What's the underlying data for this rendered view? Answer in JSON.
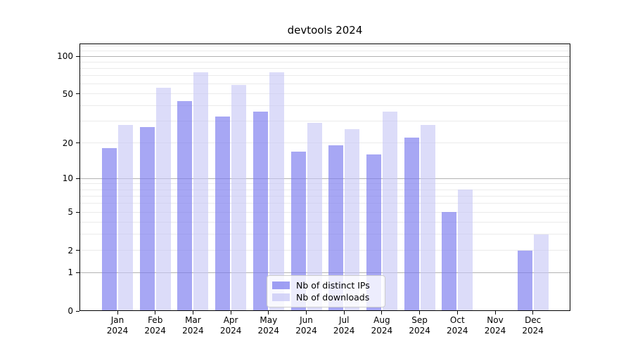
{
  "chart_data": {
    "type": "bar",
    "title": "devtools 2024",
    "categories": [
      "Jan 2024",
      "Feb 2024",
      "Mar 2024",
      "Apr 2024",
      "May 2024",
      "Jun 2024",
      "Jul 2024",
      "Aug 2024",
      "Sep 2024",
      "Oct 2024",
      "Nov 2024",
      "Dec 2024"
    ],
    "series": [
      {
        "name": "Nb of distinct IPs",
        "color": "#a7a7f4",
        "values": [
          18,
          27,
          44,
          33,
          36,
          17,
          19,
          16,
          22,
          5,
          0,
          2
        ]
      },
      {
        "name": "Nb of downloads",
        "color": "#dcdcf9",
        "values": [
          28,
          56,
          74,
          59,
          74,
          29,
          26,
          36,
          28,
          8,
          0,
          3
        ]
      }
    ],
    "xlabel": "",
    "ylabel": "",
    "y_axis": {
      "scale": "symlog-log1p",
      "min": 0,
      "max": 126,
      "ticks": [
        0,
        1,
        2,
        5,
        10,
        20,
        50,
        100
      ],
      "grid_major": [
        1,
        10,
        100
      ],
      "grid_minor": [
        2,
        3,
        4,
        5,
        6,
        7,
        8,
        9,
        20,
        30,
        40,
        50,
        60,
        70,
        80,
        90,
        110,
        120
      ]
    },
    "grid": true,
    "legend_position": "lower center",
    "bar_layout": "grouped-pairs"
  },
  "legend": {
    "items": [
      "Nb of distinct IPs",
      "Nb of downloads"
    ]
  },
  "colors": {
    "bar_distinct_ips": "#a7a7f4",
    "bar_downloads": "#dcdcf9",
    "grid_major": "#b3b3b3",
    "grid_minor": "#ebebeb",
    "axis": "#000000",
    "background": "#ffffff",
    "legend_border": "#cccccc"
  }
}
